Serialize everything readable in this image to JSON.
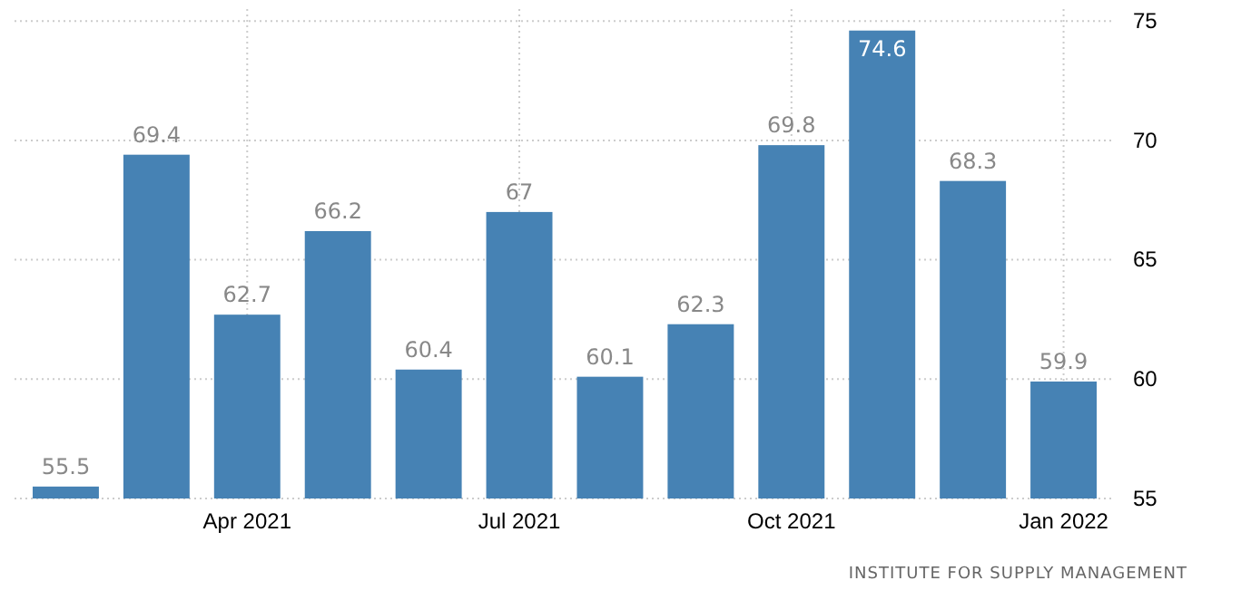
{
  "chart_data": {
    "type": "bar",
    "categories": [
      null,
      null,
      "Apr 2021",
      null,
      null,
      "Jul 2021",
      null,
      null,
      "Oct 2021",
      null,
      null,
      "Jan 2022"
    ],
    "values": [
      55.5,
      69.4,
      62.7,
      66.2,
      60.4,
      67,
      60.1,
      62.3,
      69.8,
      74.6,
      68.3,
      59.9
    ],
    "color": "#4682b4",
    "ylim": [
      55,
      75.5
    ],
    "yticks": [
      55,
      60,
      65,
      70,
      75
    ],
    "grid": true,
    "data_labels": true,
    "annotations": [
      "INSTITUTE FOR SUPPLY MANAGEMENT"
    ]
  }
}
